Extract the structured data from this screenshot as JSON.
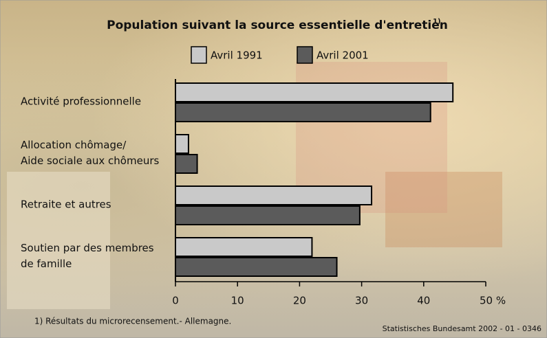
{
  "chart_data": {
    "type": "hbar",
    "title": "Population suivant la source essentielle d'entretien",
    "title_marker": "1)",
    "categories": [
      "Activité professionnelle",
      "Allocation chômage/\nAide sociale aux chômeurs",
      "Retraite et autres",
      "Soutien par des membres\nde famille"
    ],
    "series": [
      {
        "name": "Avril 1991",
        "color": "#c9c9c9",
        "values": [
          44.7,
          2.1,
          31.6,
          22
        ]
      },
      {
        "name": "Avril 2001",
        "color": "#5b5b5b",
        "values": [
          41.1,
          3.5,
          29.7,
          26
        ]
      }
    ],
    "xlim": [
      0,
      50
    ],
    "xticks": [
      0,
      10,
      20,
      30,
      40,
      {
        "value": 50,
        "label": "50 %"
      }
    ],
    "footnote": "1) Résultats du microrecensement.- Allemagne.",
    "source": "Statistisches Bundesamt 2002 - 01 - 0346"
  }
}
